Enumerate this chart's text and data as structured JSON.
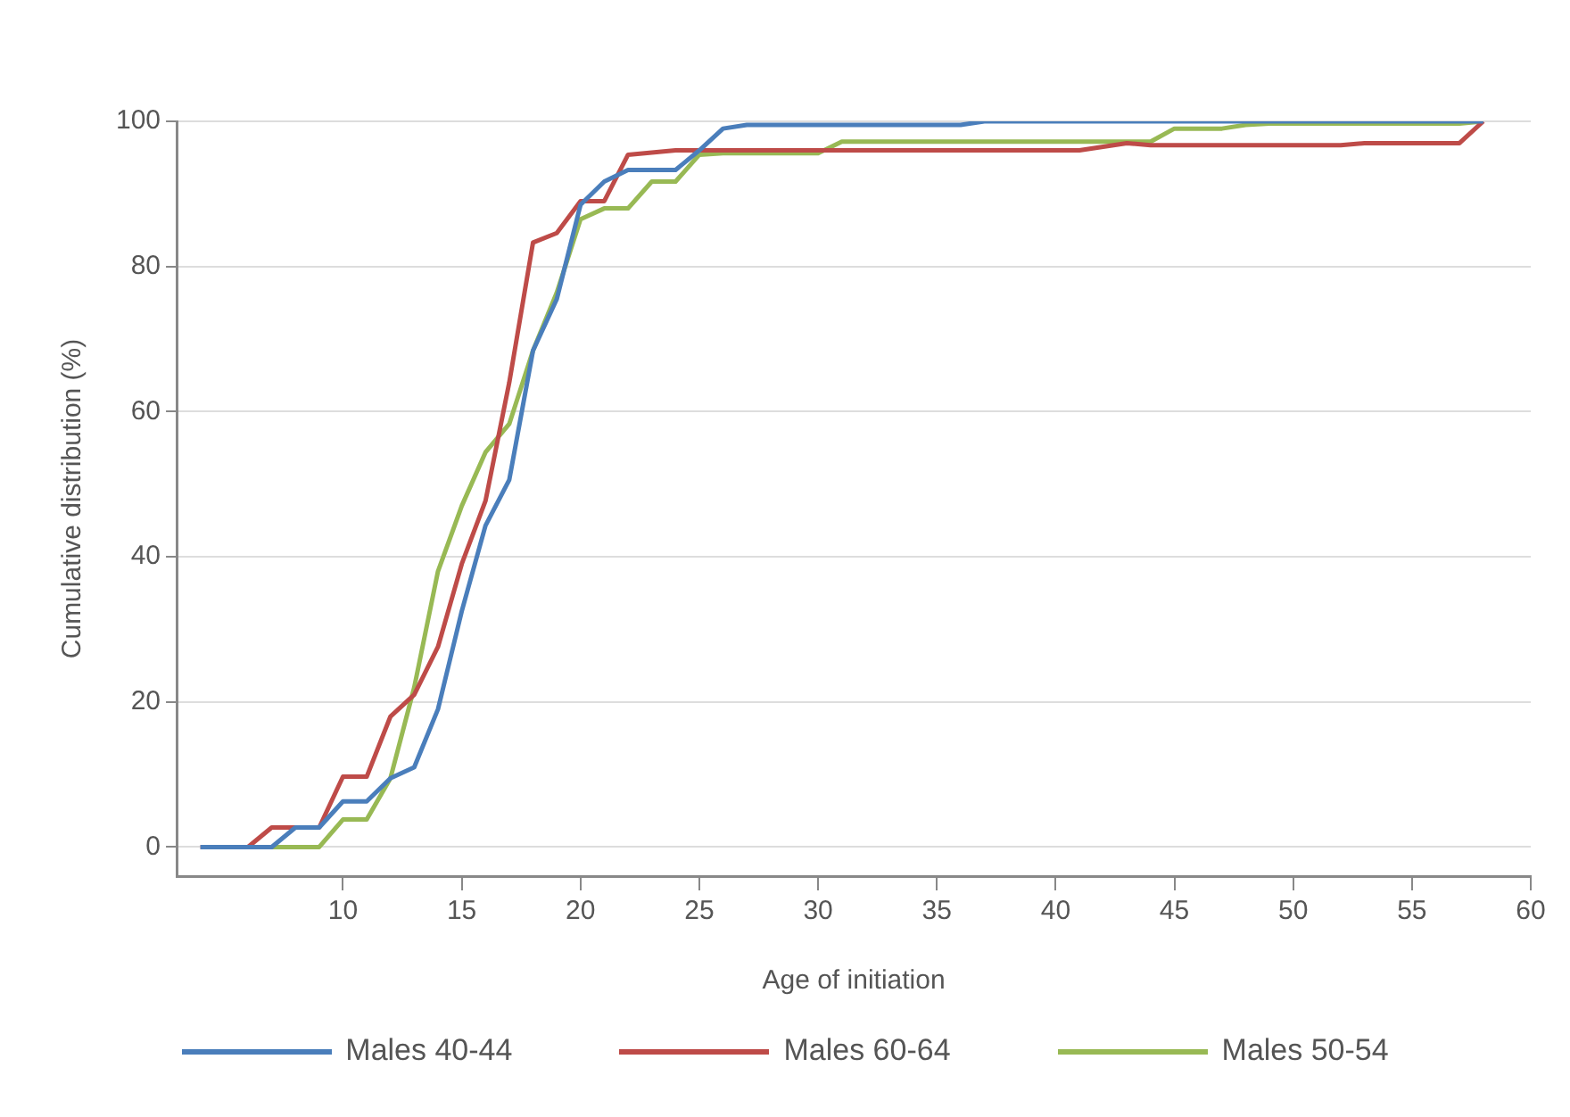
{
  "chart_data": {
    "type": "line",
    "xlabel": "Age of initiation",
    "ylabel": "Cumulative distribution (%)",
    "x": [
      4,
      5,
      6,
      7,
      8,
      9,
      10,
      11,
      12,
      13,
      14,
      15,
      16,
      17,
      18,
      19,
      20,
      21,
      22,
      23,
      24,
      25,
      26,
      27,
      28,
      29,
      30,
      31,
      32,
      33,
      34,
      35,
      36,
      37,
      38,
      39,
      40,
      41,
      42,
      43,
      44,
      45,
      46,
      47,
      48,
      49,
      50,
      51,
      52,
      53,
      54,
      55,
      56,
      57,
      58
    ],
    "series": [
      {
        "name": "Males 40-44",
        "color": "#4a7ebb",
        "values": [
          0,
          0,
          0,
          0,
          2.7,
          2.7,
          6.3,
          6.3,
          9.5,
          11,
          19,
          32.5,
          44.3,
          50.6,
          68.4,
          75.5,
          88.5,
          91.7,
          93.3,
          93.3,
          93.3,
          96,
          99,
          99.5,
          99.5,
          99.5,
          99.5,
          99.5,
          99.5,
          99.5,
          99.5,
          99.5,
          99.5,
          100,
          100,
          100,
          100,
          100,
          100,
          100,
          100,
          100,
          100,
          100,
          100,
          100,
          100,
          100,
          100,
          100,
          100,
          100,
          100,
          100,
          100
        ]
      },
      {
        "name": "Males 60-64",
        "color": "#be4b48",
        "values": [
          0,
          0,
          0,
          2.7,
          2.7,
          2.7,
          9.7,
          9.7,
          18,
          21,
          27.6,
          39,
          47.7,
          64,
          83.3,
          84.6,
          89,
          89,
          95.4,
          95.7,
          96,
          96,
          96,
          96,
          96,
          96,
          96,
          96,
          96,
          96,
          96,
          96,
          96,
          96,
          96,
          96,
          96,
          96,
          96.5,
          97,
          96.7,
          96.7,
          96.7,
          96.7,
          96.7,
          96.7,
          96.7,
          96.7,
          96.7,
          97,
          97,
          97,
          97,
          97,
          100
        ]
      },
      {
        "name": "Males 50-54",
        "color": "#98b954",
        "values": [
          null,
          null,
          0,
          0,
          0,
          0,
          3.8,
          3.8,
          9.5,
          22,
          38,
          47,
          54.4,
          58.3,
          68.4,
          76.4,
          86.5,
          88,
          88,
          91.7,
          91.7,
          95.4,
          95.6,
          95.6,
          95.6,
          95.6,
          95.6,
          97.2,
          97.2,
          97.2,
          97.2,
          97.2,
          97.2,
          97.2,
          97.2,
          97.2,
          97.2,
          97.2,
          97.2,
          97.2,
          97.2,
          99,
          99,
          99,
          99.5,
          99.7,
          99.7,
          99.7,
          99.7,
          99.7,
          99.7,
          99.7,
          99.7,
          99.7,
          100
        ]
      }
    ],
    "xlim": [
      3,
      60
    ],
    "xticks": [
      10,
      15,
      20,
      25,
      30,
      35,
      40,
      45,
      50,
      55,
      60
    ],
    "ylim": [
      -4,
      100
    ],
    "yticks": [
      0,
      20,
      40,
      60,
      80,
      100
    ],
    "grid": "y",
    "legend": "bottom",
    "marker": "none",
    "line_style": "solid"
  }
}
